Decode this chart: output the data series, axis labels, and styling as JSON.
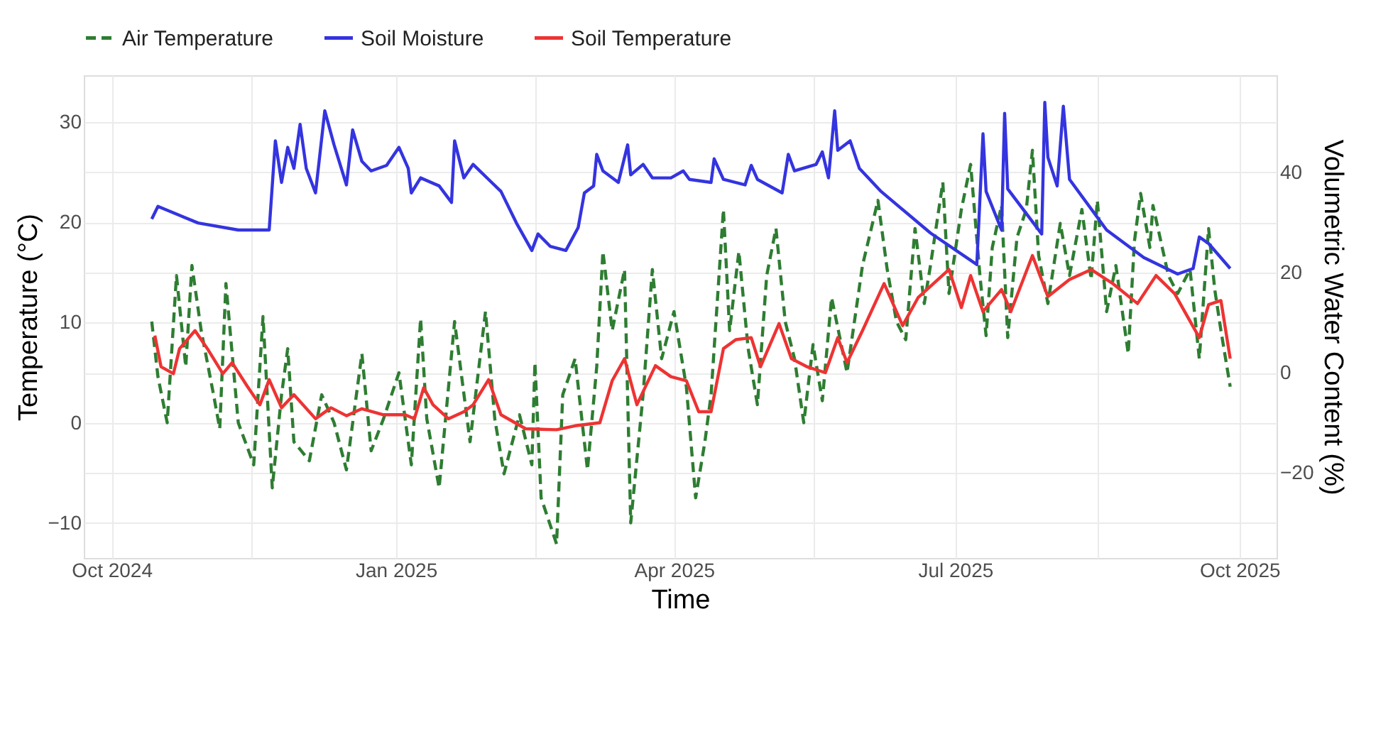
{
  "chart_data": {
    "type": "line",
    "xlabel": "Time",
    "ylabel": "Temperature (°C)",
    "y2label": "Volumetric Water Content (%)",
    "legend": "top",
    "grid": true,
    "xlim": [
      "2024-09-22",
      "2025-10-13"
    ],
    "xticks": [
      {
        "value": "2024-10-01",
        "label": "Oct 2024"
      },
      {
        "value": "2024-11-15",
        "label": null
      },
      {
        "value": "2025-01-01",
        "label": "Jan 2025"
      },
      {
        "value": "2025-02-15",
        "label": null
      },
      {
        "value": "2025-04-01",
        "label": "Apr 2025"
      },
      {
        "value": "2025-05-16",
        "label": null
      },
      {
        "value": "2025-07-01",
        "label": "Jul 2025"
      },
      {
        "value": "2025-08-16",
        "label": null
      },
      {
        "value": "2025-10-01",
        "label": "Oct 2025"
      }
    ],
    "ylim": [
      -13.5,
      34.7
    ],
    "yticks": [
      -10,
      0,
      10,
      20,
      30
    ],
    "y2lim": [
      -37,
      59.4
    ],
    "y2ticks": [
      -20,
      0,
      20,
      40
    ],
    "series": [
      {
        "name": "Air Temperature",
        "color": "#2e7d32",
        "line_style": "dashed",
        "x": [
          "2024-10-14",
          "2024-10-16",
          "2024-10-19",
          "2024-10-22",
          "2024-10-25",
          "2024-10-27",
          "2024-10-30",
          "2024-11-03",
          "2024-11-05",
          "2024-11-07",
          "2024-11-11",
          "2024-11-16",
          "2024-11-19",
          "2024-11-22",
          "2024-11-25",
          "2024-11-27",
          "2024-11-29",
          "2024-12-04",
          "2024-12-08",
          "2024-12-12",
          "2024-12-16",
          "2024-12-21",
          "2024-12-24",
          "2024-12-28",
          "2025-01-02",
          "2025-01-06",
          "2025-01-09",
          "2025-01-11",
          "2025-01-15",
          "2025-01-20",
          "2025-01-25",
          "2025-01-30",
          "2025-02-02",
          "2025-02-05",
          "2025-02-10",
          "2025-02-14",
          "2025-02-15",
          "2025-02-17",
          "2025-02-22",
          "2025-02-24",
          "2025-02-28",
          "2025-03-04",
          "2025-03-07",
          "2025-03-09",
          "2025-03-12",
          "2025-03-16",
          "2025-03-18",
          "2025-03-22",
          "2025-03-25",
          "2025-03-28",
          "2025-04-01",
          "2025-04-05",
          "2025-04-08",
          "2025-04-11",
          "2025-04-13",
          "2025-04-17",
          "2025-04-19",
          "2025-04-22",
          "2025-04-25",
          "2025-04-28",
          "2025-05-01",
          "2025-05-04",
          "2025-05-07",
          "2025-05-10",
          "2025-05-13",
          "2025-05-16",
          "2025-05-19",
          "2025-05-22",
          "2025-05-27",
          "2025-06-01",
          "2025-06-06",
          "2025-06-09",
          "2025-06-12",
          "2025-06-15",
          "2025-06-18",
          "2025-06-21",
          "2025-06-23",
          "2025-06-27",
          "2025-06-29",
          "2025-07-03",
          "2025-07-06",
          "2025-07-09",
          "2025-07-11",
          "2025-07-13",
          "2025-07-16",
          "2025-07-18",
          "2025-07-21",
          "2025-07-24",
          "2025-07-26",
          "2025-07-28",
          "2025-07-31",
          "2025-08-04",
          "2025-08-07",
          "2025-08-11",
          "2025-08-14",
          "2025-08-16",
          "2025-08-19",
          "2025-08-22",
          "2025-08-26",
          "2025-08-28",
          "2025-08-30",
          "2025-09-02",
          "2025-09-03",
          "2025-09-08",
          "2025-09-11",
          "2025-09-15",
          "2025-09-18",
          "2025-09-21",
          "2025-09-23",
          "2025-09-25",
          "2025-09-28"
        ],
        "values": [
          10.1,
          4.6,
          0,
          14.7,
          5.6,
          15.7,
          9.2,
          2.8,
          -0.6,
          13.9,
          0,
          -4.2,
          10.6,
          -6.5,
          2.8,
          7.4,
          -1.9,
          -3.8,
          2.8,
          0,
          -4.7,
          6.9,
          -2.8,
          0.4,
          5,
          -4.2,
          10.4,
          0.4,
          -6.5,
          10.1,
          -1.9,
          11.1,
          0.4,
          -5.1,
          0.8,
          -4.2,
          6,
          -7.5,
          -12.1,
          2.8,
          6.4,
          -4.7,
          5.6,
          17.1,
          9.2,
          15.3,
          -10,
          2.8,
          15.3,
          6.4,
          11.1,
          3.6,
          -7.5,
          -1.9,
          2.8,
          21.3,
          9.2,
          17.1,
          7.4,
          1.8,
          14.7,
          19.4,
          10.1,
          6.4,
          0,
          7.8,
          2.2,
          12.5,
          5,
          15.7,
          22.2,
          15.3,
          10.1,
          8.3,
          19.4,
          11.9,
          15.7,
          24,
          12.9,
          21.3,
          25.8,
          14.7,
          8.7,
          17.5,
          21.7,
          8.5,
          18.5,
          21.3,
          27.2,
          16.7,
          11.9,
          19.9,
          14.7,
          21.3,
          14.3,
          22.2,
          11.1,
          15.7,
          6.9,
          18.1,
          22.9,
          17.5,
          21.7,
          14.7,
          12.9,
          15.3,
          6.4,
          19.4,
          13.3,
          9.2,
          3.6
        ]
      },
      {
        "name": "Soil Moisture",
        "color": "#3434e0",
        "axis": "y2",
        "x": [
          "2024-10-14",
          "2024-10-16",
          "2024-10-29",
          "2024-11-11",
          "2024-11-21",
          "2024-11-23",
          "2024-11-25",
          "2024-11-27",
          "2024-11-29",
          "2024-12-01",
          "2024-12-03",
          "2024-12-06",
          "2024-12-09",
          "2024-12-12",
          "2024-12-16",
          "2024-12-18",
          "2024-12-21",
          "2024-12-24",
          "2024-12-29",
          "2025-01-02",
          "2025-01-05",
          "2025-01-06",
          "2025-01-09",
          "2025-01-15",
          "2025-01-19",
          "2025-01-20",
          "2025-01-23",
          "2025-01-26",
          "2025-02-01",
          "2025-02-04",
          "2025-02-09",
          "2025-02-14",
          "2025-02-16",
          "2025-02-20",
          "2025-02-25",
          "2025-03-01",
          "2025-03-03",
          "2025-03-06",
          "2025-03-07",
          "2025-03-09",
          "2025-03-14",
          "2025-03-17",
          "2025-03-18",
          "2025-03-22",
          "2025-03-25",
          "2025-03-31",
          "2025-04-04",
          "2025-04-06",
          "2025-04-13",
          "2025-04-14",
          "2025-04-17",
          "2025-04-24",
          "2025-04-26",
          "2025-04-28",
          "2025-05-06",
          "2025-05-08",
          "2025-05-10",
          "2025-05-17",
          "2025-05-19",
          "2025-05-21",
          "2025-05-23",
          "2025-05-24",
          "2025-05-28",
          "2025-05-31",
          "2025-06-07",
          "2025-06-23",
          "2025-07-08",
          "2025-07-10",
          "2025-07-11",
          "2025-07-16",
          "2025-07-17",
          "2025-07-18",
          "2025-07-29",
          "2025-07-30",
          "2025-07-31",
          "2025-08-03",
          "2025-08-05",
          "2025-08-07",
          "2025-08-19",
          "2025-08-31",
          "2025-09-11",
          "2025-09-16",
          "2025-09-18",
          "2025-09-21",
          "2025-09-28"
        ],
        "values": [
          30.7,
          33.2,
          29.9,
          28.5,
          28.5,
          46.3,
          38,
          45,
          40.8,
          49.6,
          40.8,
          35.9,
          52.3,
          45.5,
          37.5,
          48.5,
          42.2,
          40.3,
          41.4,
          45,
          40.8,
          35.9,
          38.9,
          37.3,
          34,
          46.3,
          38.9,
          41.6,
          38,
          36.2,
          29.9,
          24.4,
          27.7,
          25.2,
          24.4,
          29,
          35.9,
          37.3,
          43.6,
          40.3,
          38,
          45.5,
          39.5,
          41.6,
          38.9,
          38.9,
          40.3,
          38.6,
          38,
          42.7,
          38.6,
          37.5,
          41.4,
          38.6,
          35.9,
          43.6,
          40.3,
          41.6,
          44.1,
          38.9,
          52.3,
          44.4,
          46.3,
          40.8,
          36.2,
          27.9,
          21.6,
          47.7,
          36.2,
          28.5,
          51.8,
          36.7,
          27.7,
          54,
          43,
          37.3,
          53.2,
          38.6,
          28.5,
          23,
          19.7,
          20.8,
          27.1,
          25.8,
          20.8
        ]
      },
      {
        "name": "Soil Temperature",
        "color": "#ee3333",
        "x": [
          "2024-10-15",
          "2024-10-17",
          "2024-10-21",
          "2024-10-23",
          "2024-10-28",
          "2024-11-01",
          "2024-11-06",
          "2024-11-09",
          "2024-11-14",
          "2024-11-18",
          "2024-11-21",
          "2024-11-25",
          "2024-11-29",
          "2024-12-06",
          "2024-12-11",
          "2024-12-16",
          "2024-12-21",
          "2024-12-28",
          "2025-01-04",
          "2025-01-07",
          "2025-01-10",
          "2025-01-13",
          "2025-01-18",
          "2025-01-23",
          "2025-01-26",
          "2025-01-31",
          "2025-02-04",
          "2025-02-12",
          "2025-02-22",
          "2025-02-28",
          "2025-03-08",
          "2025-03-12",
          "2025-03-16",
          "2025-03-20",
          "2025-03-26",
          "2025-03-31",
          "2025-04-05",
          "2025-04-09",
          "2025-04-13",
          "2025-04-17",
          "2025-04-21",
          "2025-04-26",
          "2025-04-29",
          "2025-05-05",
          "2025-05-09",
          "2025-05-14",
          "2025-05-20",
          "2025-05-24",
          "2025-05-27",
          "2025-06-01",
          "2025-06-08",
          "2025-06-14",
          "2025-06-19",
          "2025-06-29",
          "2025-07-03",
          "2025-07-06",
          "2025-07-10",
          "2025-07-16",
          "2025-07-19",
          "2025-07-26",
          "2025-07-31",
          "2025-08-07",
          "2025-08-14",
          "2025-08-19",
          "2025-08-21",
          "2025-08-29",
          "2025-09-04",
          "2025-09-10",
          "2025-09-18",
          "2025-09-21",
          "2025-09-25",
          "2025-09-28"
        ],
        "values": [
          8.7,
          5.6,
          4.9,
          7.4,
          9.2,
          7.4,
          4.9,
          6,
          3.6,
          1.8,
          4.3,
          1.5,
          2.8,
          0.4,
          1.5,
          0.7,
          1.4,
          0.8,
          0.8,
          0.4,
          3.5,
          1.8,
          0.4,
          1.1,
          1.8,
          4.3,
          0.8,
          -0.6,
          -0.7,
          -0.3,
          0,
          4.2,
          6.4,
          1.8,
          5.7,
          4.6,
          4.2,
          1.1,
          1.1,
          7.4,
          8.3,
          8.5,
          5.6,
          9.9,
          6.4,
          5.6,
          5,
          8.5,
          6,
          9.2,
          13.9,
          9.7,
          12.5,
          15.3,
          11.5,
          14.7,
          11.1,
          13.3,
          11.1,
          16.7,
          12.6,
          14.3,
          15.3,
          14.3,
          13.9,
          11.9,
          14.7,
          12.9,
          8.5,
          11.8,
          12.2,
          6.4
        ]
      }
    ]
  }
}
